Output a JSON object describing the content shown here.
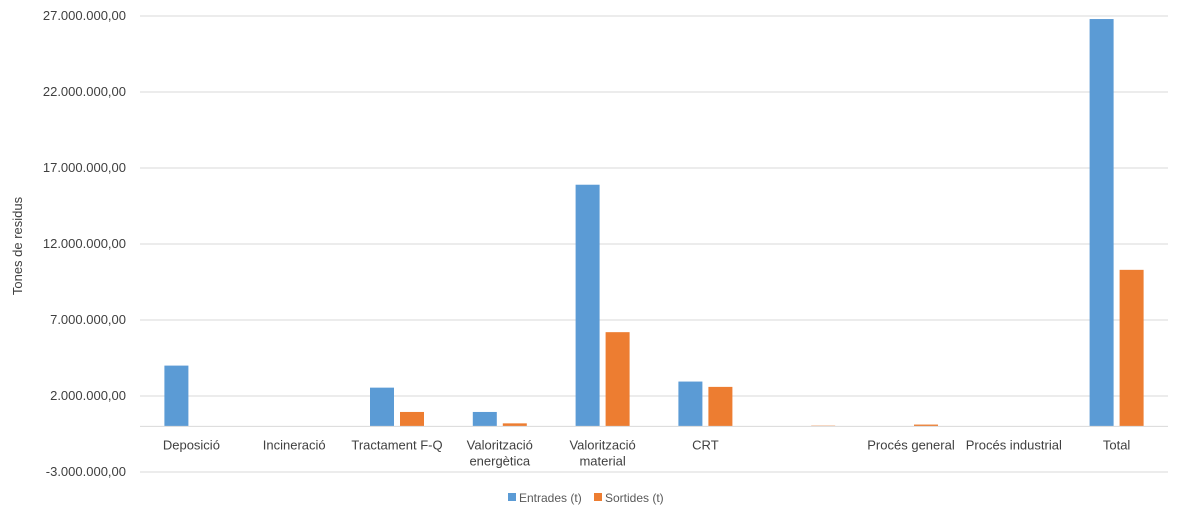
{
  "chart_data": {
    "type": "bar",
    "title": "",
    "xlabel": "",
    "ylabel": "Tones de residus",
    "ylim": [
      -3000000,
      27000000
    ],
    "yticks": [
      -3000000,
      2000000,
      7000000,
      12000000,
      17000000,
      22000000,
      27000000
    ],
    "ytick_labels": [
      "-3.000.000,00",
      "2.000.000,00",
      "7.000.000,00",
      "12.000.000,00",
      "17.000.000,00",
      "22.000.000,00",
      "27.000.000,00"
    ],
    "categories": [
      [
        "Deposició"
      ],
      [
        "Incineració"
      ],
      [
        "Tractament F-Q"
      ],
      [
        "Valorització",
        "energètica"
      ],
      [
        "Valorització",
        "material"
      ],
      [
        "CRT"
      ],
      [
        ""
      ],
      [
        "Procés general"
      ],
      [
        "Procés industrial"
      ],
      [
        "Total"
      ]
    ],
    "series": [
      {
        "name": "Entrades (t)",
        "color": "#5B9BD5",
        "values": [
          4000000,
          0,
          2550000,
          950000,
          15900000,
          2950000,
          0,
          0,
          0,
          26800000
        ]
      },
      {
        "name": "Sortides (t)",
        "color": "#ED7D31",
        "values": [
          0,
          0,
          950000,
          200000,
          6200000,
          2600000,
          50000,
          120000,
          0,
          10300000
        ]
      }
    ],
    "grid": true,
    "legend_position": "bottom"
  }
}
